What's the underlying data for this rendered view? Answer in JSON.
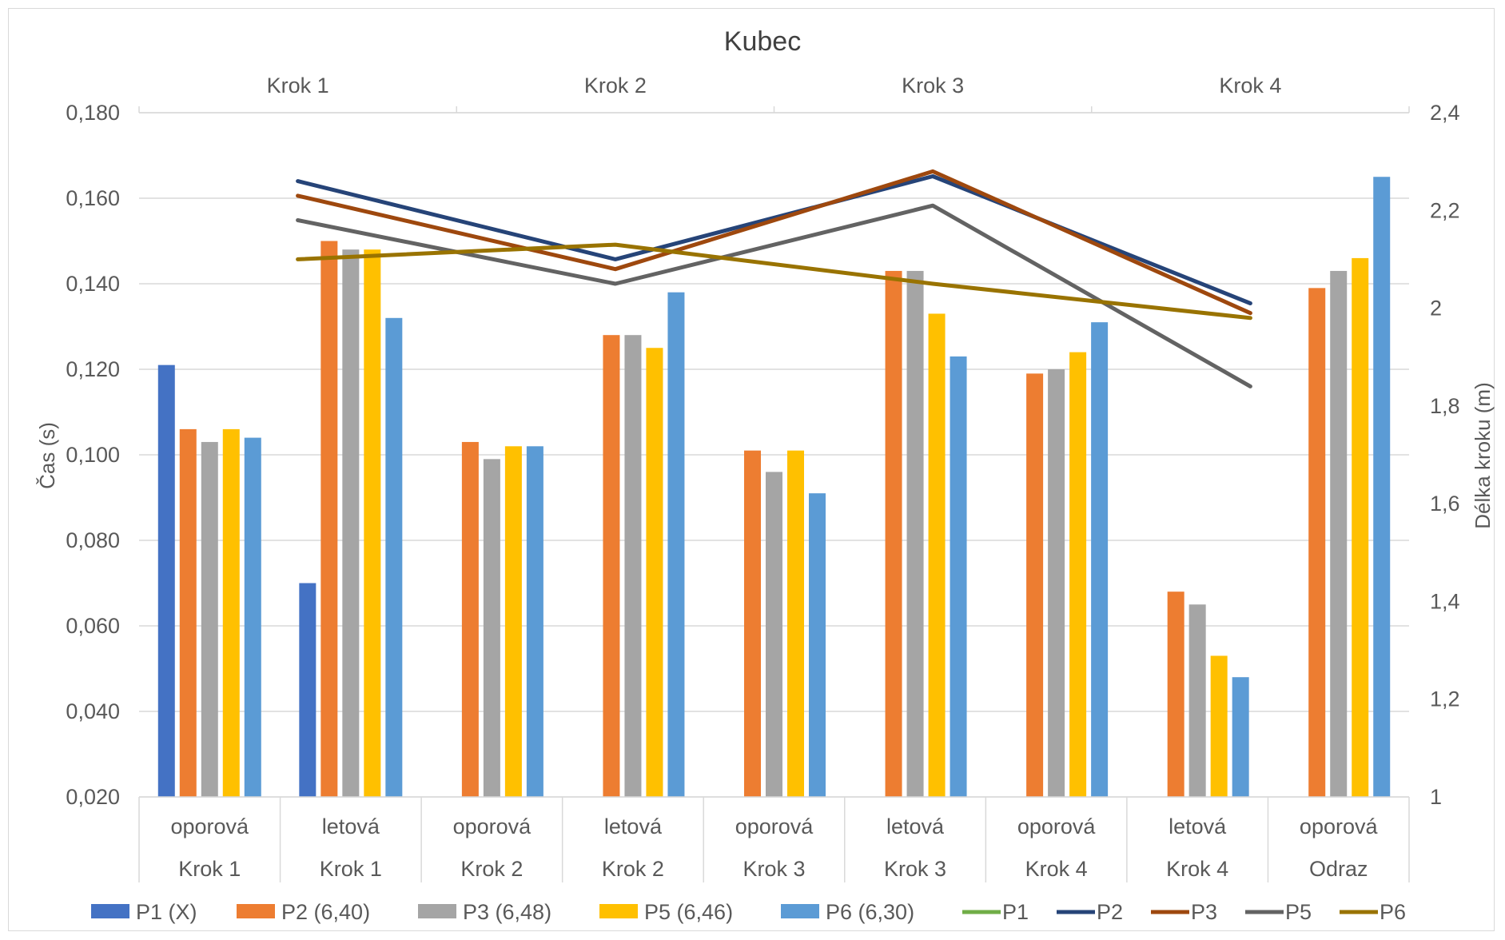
{
  "chart_data": {
    "type": "bar",
    "title": "Kubec",
    "ylabel": "Čas (s)",
    "y2label": "Délka kroku (m)",
    "ylim": [
      0.02,
      0.18
    ],
    "y_ticks": [
      "0,020",
      "0,040",
      "0,060",
      "0,080",
      "0,100",
      "0,120",
      "0,140",
      "0,160",
      "0,180"
    ],
    "y2lim": [
      1,
      2.4
    ],
    "y2_ticks": [
      "1",
      "1,2",
      "1,4",
      "1,6",
      "1,8",
      "2",
      "2,2",
      "2,4"
    ],
    "categories": [
      {
        "phase": "oporová",
        "step": "Krok 1"
      },
      {
        "phase": "letová",
        "step": "Krok 1"
      },
      {
        "phase": "oporová",
        "step": "Krok 2"
      },
      {
        "phase": "letová",
        "step": "Krok 2"
      },
      {
        "phase": "oporová",
        "step": "Krok 3"
      },
      {
        "phase": "letová",
        "step": "Krok 3"
      },
      {
        "phase": "oporová",
        "step": "Krok 4"
      },
      {
        "phase": "letová",
        "step": "Krok 4"
      },
      {
        "phase": "oporová",
        "step": "Odraz"
      }
    ],
    "bar_series": [
      {
        "name": "P1 (X)",
        "color": "#4472c4",
        "values": [
          0.121,
          0.07,
          null,
          null,
          null,
          null,
          null,
          null,
          null
        ]
      },
      {
        "name": "P2 (6,40)",
        "color": "#ed7d31",
        "values": [
          0.106,
          0.15,
          0.103,
          0.128,
          0.101,
          0.143,
          0.119,
          0.068,
          0.139
        ]
      },
      {
        "name": "P3 (6,48)",
        "color": "#a5a5a5",
        "values": [
          0.103,
          0.148,
          0.099,
          0.128,
          0.096,
          0.143,
          0.12,
          0.065,
          0.143
        ]
      },
      {
        "name": "P5 (6,46)",
        "color": "#ffc000",
        "values": [
          0.106,
          0.148,
          0.102,
          0.125,
          0.101,
          0.133,
          0.124,
          0.053,
          0.146
        ]
      },
      {
        "name": "P6 (6,30)",
        "color": "#5b9bd5",
        "values": [
          0.104,
          0.132,
          0.102,
          0.138,
          0.091,
          0.123,
          0.131,
          0.048,
          0.165
        ]
      }
    ],
    "line_axis_labels": [
      "Krok 1",
      "Krok 2",
      "Krok 3",
      "Krok 4"
    ],
    "line_series": [
      {
        "name": "P1",
        "color": "#70ad47",
        "values": [
          null,
          null,
          null,
          null
        ]
      },
      {
        "name": "P2",
        "color": "#264478",
        "values": [
          2.26,
          2.1,
          2.27,
          2.01
        ]
      },
      {
        "name": "P3",
        "color": "#9e480e",
        "values": [
          2.23,
          2.08,
          2.28,
          1.99
        ]
      },
      {
        "name": "P5",
        "color": "#636363",
        "values": [
          2.18,
          2.05,
          2.21,
          1.84
        ]
      },
      {
        "name": "P6",
        "color": "#997300",
        "values": [
          2.1,
          2.13,
          2.05,
          1.98
        ]
      }
    ]
  }
}
